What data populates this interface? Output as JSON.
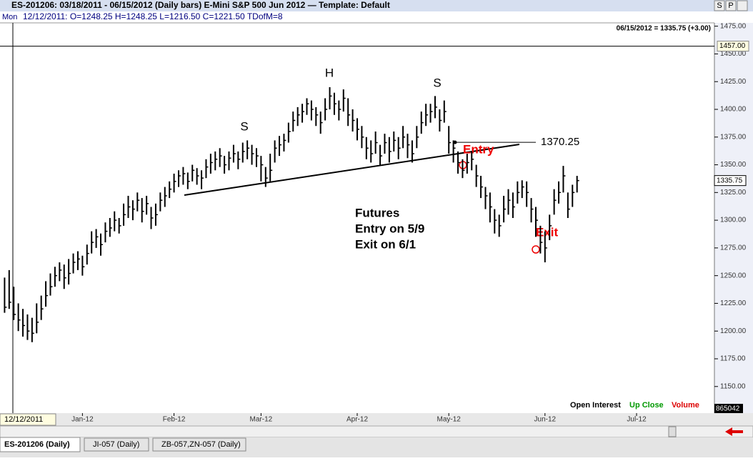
{
  "header": {
    "title": "ES-201206:  03/18/2011 - 06/15/2012  (Daily bars)   E-Mini S&P 500 Jun 2012  —  Template: Default",
    "buttons": [
      "S",
      "P"
    ],
    "day": "Mon",
    "bar_info": "12/12/2011:  O=1248.25  H=1248.25  L=1216.50  C=1221.50  TDofM=8"
  },
  "chart_data": {
    "type": "ohlc",
    "last_quote": "06/15/2012 = 1335.75 (+3.00)",
    "xlim": [
      -1,
      155
    ],
    "xticks": [
      {
        "value": 17,
        "label": "Jan-12"
      },
      {
        "value": 37,
        "label": "Feb-12"
      },
      {
        "value": 56,
        "label": "Mar-12"
      },
      {
        "value": 77,
        "label": "Apr-12"
      },
      {
        "value": 97,
        "label": "May-12"
      },
      {
        "value": 118,
        "label": "Jun-12"
      },
      {
        "value": 138,
        "label": "Jul-12"
      }
    ],
    "ylim": [
      1126,
      1478
    ],
    "yticks": [
      {
        "value": 1150,
        "label": "1150.00"
      },
      {
        "value": 1175,
        "label": "1175.00"
      },
      {
        "value": 1200,
        "label": "1200.00"
      },
      {
        "value": 1225,
        "label": "1225.00"
      },
      {
        "value": 1250,
        "label": "1250.00"
      },
      {
        "value": 1275,
        "label": "1275.00"
      },
      {
        "value": 1300,
        "label": "1300.00"
      },
      {
        "value": 1325,
        "label": "1325.00"
      },
      {
        "value": 1350,
        "label": "1350.00"
      },
      {
        "value": 1375,
        "label": "1375.00"
      },
      {
        "value": 1400,
        "label": "1400.00"
      },
      {
        "value": 1425,
        "label": "1425.00"
      },
      {
        "value": 1450,
        "label": "1450.00"
      },
      {
        "value": 1475,
        "label": "1475.00"
      }
    ],
    "color": "#000000",
    "high": [
      1248.25,
      1255,
      1240,
      1225,
      1220,
      1215,
      1212,
      1225,
      1232,
      1245,
      1252,
      1258,
      1262,
      1260,
      1265,
      1270,
      1272,
      1268,
      1278,
      1290,
      1292,
      1288,
      1298,
      1302,
      1308,
      1302,
      1315,
      1322,
      1318,
      1325,
      1320,
      1322,
      1312,
      1315,
      1325,
      1330,
      1335,
      1342,
      1345,
      1348,
      1343,
      1350,
      1347,
      1345,
      1355,
      1360,
      1362,
      1365,
      1358,
      1362,
      1368,
      1362,
      1370,
      1372,
      1368,
      1365,
      1358,
      1348,
      1360,
      1372,
      1376,
      1378,
      1388,
      1398,
      1402,
      1405,
      1410,
      1408,
      1402,
      1398,
      1410,
      1420,
      1415,
      1408,
      1418,
      1410,
      1400,
      1392,
      1385,
      1375,
      1372,
      1380,
      1368,
      1378,
      1375,
      1380,
      1375,
      1385,
      1378,
      1372,
      1385,
      1398,
      1405,
      1405,
      1412,
      1400,
      1408,
      1385,
      1372,
      1362,
      1355,
      1360,
      1362,
      1350,
      1340,
      1330,
      1325,
      1310,
      1305,
      1322,
      1328,
      1325,
      1335,
      1336,
      1335,
      1320,
      1312,
      1295,
      1290,
      1305,
      1328,
      1335,
      1349,
      1325,
      1332,
      1340
    ],
    "low": [
      1216.5,
      1220,
      1210,
      1200,
      1195,
      1192,
      1190,
      1198,
      1210,
      1222,
      1232,
      1240,
      1245,
      1238,
      1242,
      1252,
      1255,
      1250,
      1260,
      1270,
      1275,
      1268,
      1280,
      1285,
      1290,
      1288,
      1295,
      1302,
      1300,
      1308,
      1298,
      1305,
      1292,
      1295,
      1308,
      1312,
      1320,
      1325,
      1330,
      1332,
      1328,
      1335,
      1332,
      1328,
      1338,
      1342,
      1345,
      1348,
      1342,
      1345,
      1352,
      1346,
      1352,
      1355,
      1350,
      1348,
      1335,
      1330,
      1335,
      1352,
      1358,
      1362,
      1370,
      1380,
      1385,
      1388,
      1395,
      1390,
      1385,
      1378,
      1390,
      1400,
      1395,
      1390,
      1398,
      1385,
      1380,
      1372,
      1365,
      1355,
      1352,
      1360,
      1350,
      1360,
      1352,
      1362,
      1355,
      1365,
      1356,
      1352,
      1365,
      1378,
      1385,
      1388,
      1392,
      1380,
      1388,
      1360,
      1352,
      1342,
      1338,
      1342,
      1345,
      1330,
      1320,
      1310,
      1298,
      1288,
      1285,
      1298,
      1305,
      1302,
      1315,
      1320,
      1312,
      1298,
      1285,
      1270,
      1262,
      1282,
      1305,
      1315,
      1325,
      1302,
      1312,
      1325
    ],
    "close": [
      1221.5,
      1226,
      1215,
      1210,
      1205,
      1200,
      1198,
      1208,
      1220,
      1232,
      1240,
      1250,
      1255,
      1248,
      1252,
      1262,
      1265,
      1258,
      1270,
      1280,
      1285,
      1278,
      1290,
      1293,
      1300,
      1295,
      1305,
      1312,
      1310,
      1318,
      1308,
      1315,
      1302,
      1305,
      1318,
      1322,
      1328,
      1335,
      1340,
      1342,
      1335,
      1345,
      1340,
      1338,
      1348,
      1352,
      1355,
      1358,
      1350,
      1356,
      1360,
      1355,
      1362,
      1365,
      1360,
      1358,
      1350,
      1338,
      1345,
      1365,
      1368,
      1372,
      1380,
      1390,
      1395,
      1398,
      1405,
      1400,
      1395,
      1388,
      1400,
      1412,
      1405,
      1400,
      1410,
      1395,
      1390,
      1382,
      1375,
      1365,
      1360,
      1370,
      1358,
      1370,
      1362,
      1372,
      1365,
      1375,
      1368,
      1360,
      1375,
      1388,
      1395,
      1398,
      1402,
      1390,
      1398,
      1370,
      1365,
      1352,
      1345,
      1352,
      1355,
      1340,
      1330,
      1322,
      1312,
      1300,
      1295,
      1310,
      1318,
      1312,
      1325,
      1330,
      1325,
      1310,
      1300,
      1280,
      1275,
      1295,
      1318,
      1325,
      1340,
      1310,
      1325,
      1335.75
    ],
    "crosshair_level": {
      "value": 1457,
      "label": "1457.00"
    },
    "last_price": {
      "value": 1335.75,
      "label": "1335.75"
    },
    "entry_level": 1370.25,
    "pattern_labels": [
      "S",
      "H",
      "S"
    ],
    "note": [
      "Futures",
      "Entry on 5/9",
      "Exit on 6/1"
    ],
    "entry_label": "Entry",
    "exit_label": "Exit",
    "legend": [
      "Open Interest",
      "Up Close",
      "Volume"
    ],
    "volume_readout": "865042",
    "cursor_date": "12/12/2011"
  },
  "tabs": [
    "ES-201206 (Daily)",
    "JI-057 (Daily)",
    "ZB-057,ZN-057 (Daily)"
  ]
}
